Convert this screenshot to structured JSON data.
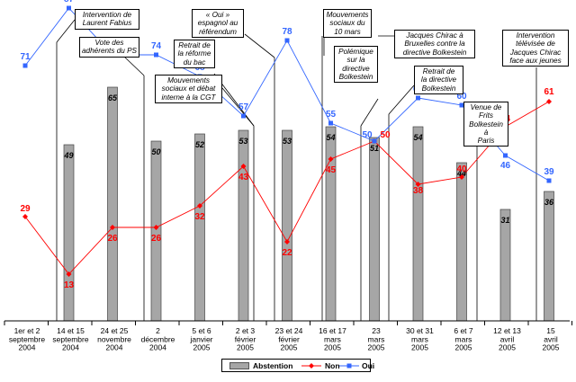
{
  "chart_data": {
    "type": "bar+line",
    "categories": [
      "1er et 2 septembre 2004",
      "14 et 15 septembre 2004",
      "24 et 25 novembre 2004",
      "2 décembre 2004",
      "5 et 6 janvier 2005",
      "2 et 3 février 2005",
      "23 et 24 février 2005",
      "16 et 17 mars 2005",
      "23 mars 2005",
      "30 et 31 mars 2005",
      "6 et 7 mars 2005",
      "12 et 13 avril 2005",
      "15 avril 2005"
    ],
    "category_lines": [
      [
        "1er et 2",
        "septembre",
        "2004"
      ],
      [
        "14 et 15",
        "septembre",
        "2004"
      ],
      [
        "24 et 25",
        "novembre",
        "2004"
      ],
      [
        "2",
        "décembre",
        "2004"
      ],
      [
        "5 et 6",
        "janvier",
        "2005"
      ],
      [
        "2 et 3",
        "février",
        "2005"
      ],
      [
        "23 et 24",
        "février",
        "2005"
      ],
      [
        "16 et 17",
        "mars",
        "2005"
      ],
      [
        "23",
        "mars",
        "2005"
      ],
      [
        "30 et 31",
        "mars",
        "2005"
      ],
      [
        "6 et 7",
        "mars",
        "2005"
      ],
      [
        "12 et 13",
        "avril",
        "2005"
      ],
      [
        "15",
        "avril",
        "2005"
      ]
    ],
    "series": [
      {
        "name": "Abstention",
        "kind": "bar",
        "color": "#a6a6a6",
        "values": [
          null,
          49,
          65,
          50,
          52,
          53,
          53,
          54,
          51,
          54,
          44,
          31,
          36
        ]
      },
      {
        "name": "Non",
        "kind": "line",
        "color": "#ff0000",
        "marker": "diamond",
        "values": [
          29,
          13,
          26,
          26,
          32,
          43,
          22,
          45,
          50,
          38,
          40,
          54,
          61
        ]
      },
      {
        "name": "Oui",
        "kind": "line",
        "color": "#3366ff",
        "marker": "square",
        "values": [
          71,
          87,
          74,
          74,
          68,
          57,
          78,
          55,
          50,
          62,
          60,
          46,
          39
        ]
      }
    ],
    "ylim": [
      0,
      100
    ],
    "grid": false,
    "legend_position": "bottom",
    "annotations": [
      {
        "text": "Intervention de Laurent Fabius",
        "category_index": 1
      },
      {
        "text": "Vote des adhérents du PS",
        "category_index": 2
      },
      {
        "text": "Mouvements sociaux et débat interne à la CGT",
        "category_index": 5
      },
      {
        "text": "Retrait de la réforme du bac",
        "category_index": 5
      },
      {
        "text": "« Oui » espagnol au référendum",
        "category_index": 6
      },
      {
        "text": "Mouvements sociaux du 10 mars",
        "category_index": 7
      },
      {
        "text": "Polémique sur la directive Bolkestein",
        "category_index": 7
      },
      {
        "text": "Jacques Chirac à Bruxelles contre la directive Bolkestein",
        "category_index": 8
      },
      {
        "text": "Retrait de la directive Bolkestein",
        "category_index": 9
      },
      {
        "text": "Venue de Frits Bolkestein à Paris",
        "category_index": 10
      },
      {
        "text": "Intervention télévisée de Jacques Chirac face aux jeunes",
        "category_index": 12
      }
    ]
  },
  "annotations_text": {
    "a1": [
      "Intervention de",
      "Laurent Fabius"
    ],
    "a2": [
      "Vote des",
      "adhérents du PS"
    ],
    "a3": [
      "Mouvements",
      "sociaux et débat",
      "interne à la CGT"
    ],
    "a4": [
      "Retrait de",
      "la réforme",
      "du bac"
    ],
    "a5": [
      "« Oui »",
      "espagnol au",
      "référendum"
    ],
    "a6": [
      "Mouvements",
      "sociaux du",
      "10 mars"
    ],
    "a7": [
      "Polémique",
      "sur la",
      "directive",
      "Bolkestein"
    ],
    "a8": [
      "Jacques Chirac à",
      "Bruxelles contre la",
      "directive Bolkestein"
    ],
    "a9": [
      "Retrait de",
      "la directive",
      "Bolkestein"
    ],
    "a10": [
      "Venue de",
      "Frits",
      "Bolkestein à",
      "Paris"
    ],
    "a11": [
      "Intervention",
      "télévisée de",
      "Jacques Chirac",
      "face aux jeunes"
    ]
  },
  "legend": {
    "abstention": "Abstention",
    "non": "Non",
    "oui": "Oui"
  },
  "colors": {
    "bar": "#a6a6a6",
    "non": "#ff0000",
    "oui": "#3366ff"
  }
}
